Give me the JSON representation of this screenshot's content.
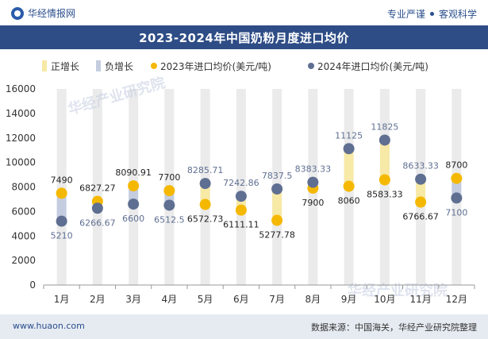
{
  "header": {
    "brand": "华经情报网",
    "slogan_left": "专业严谨",
    "slogan_right": "客观科学"
  },
  "chart_title": "2023-2024年中国奶粉月度进口均价",
  "footer": {
    "website": "www.huaon.com",
    "source": "数据来源：中国海关，华经产业研究院整理"
  },
  "watermarks": [
    "华经产业研究院",
    "华经产业研究院"
  ],
  "colors": {
    "title_bar": "#2e4d86",
    "positive_bar": "#f7e9a6",
    "negative_bar": "#c4cde0",
    "series_2023": "#f5b800",
    "series_2024": "#5f6f92",
    "column_band": "#ebebeb"
  },
  "chart_data": {
    "type": "line",
    "title": "2023-2024年中国奶粉月度进口均价",
    "xlabel": "",
    "ylabel": "",
    "ylim": [
      0,
      16000
    ],
    "yticks": [
      0,
      2000,
      4000,
      6000,
      8000,
      10000,
      12000,
      14000,
      16000
    ],
    "grid": false,
    "legend_position": "top",
    "categories": [
      "1月",
      "2月",
      "3月",
      "4月",
      "5月",
      "6月",
      "7月",
      "8月",
      "9月",
      "10月",
      "11月",
      "12月"
    ],
    "legend": [
      "正增长",
      "负增长",
      "2023年进口均价(美元/吨)",
      "2024年进口均价(美元/吨)"
    ],
    "series": [
      {
        "name": "2023年进口均价(美元/吨)",
        "values": [
          7490,
          6827.27,
          8090.91,
          7700,
          6572.73,
          6111.11,
          5277.78,
          7900,
          8060,
          8583.33,
          6766.67,
          8700
        ]
      },
      {
        "name": "2024年进口均价(美元/吨)",
        "values": [
          5210,
          6266.67,
          6600,
          6512.5,
          8285.71,
          7242.86,
          7837.5,
          8383.33,
          11125,
          11825,
          8633.33,
          7100
        ]
      }
    ],
    "labels_2023": [
      "7490",
      "6827.27",
      "8090.91",
      "7700",
      "6572.73",
      "6111.11",
      "5277.78",
      "7900",
      "8060",
      "8583.33",
      "6766.67",
      "8700"
    ],
    "labels_2024": [
      "5210",
      "6266.67",
      "6600",
      "6512.5",
      "8285.71",
      "7242.86",
      "7837.5",
      "8383.33",
      "11125",
      "11825",
      "8633.33",
      "7100"
    ]
  }
}
